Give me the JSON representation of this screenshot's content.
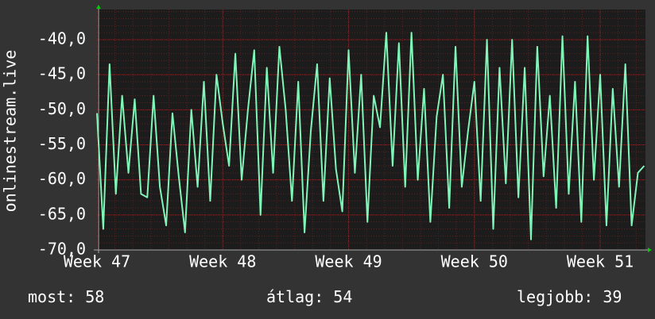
{
  "chart_data": {
    "type": "line",
    "y_label": "onlinestream.live",
    "color": "#80f5b8",
    "grid": true,
    "xlim": [
      47,
      51.36
    ],
    "xticks": [
      {
        "value": 47,
        "label": "Week 47"
      },
      {
        "value": 48,
        "label": "Week 48"
      },
      {
        "value": 49,
        "label": "Week 49"
      },
      {
        "value": 50,
        "label": "Week 50"
      },
      {
        "value": 51,
        "label": "Week 51"
      }
    ],
    "ylim": [
      -70,
      -35.7
    ],
    "yticks": [
      {
        "value": -70,
        "label": "-70,0"
      },
      {
        "value": -65,
        "label": "-65,0"
      },
      {
        "value": -60,
        "label": "-60,0"
      },
      {
        "value": -55,
        "label": "-55,0"
      },
      {
        "value": -50,
        "label": "-50,0"
      },
      {
        "value": -45,
        "label": "-45,0"
      },
      {
        "value": -40,
        "label": "-40,0"
      }
    ],
    "x": [
      47.0,
      47.05,
      47.1,
      47.15,
      47.2,
      47.25,
      47.3,
      47.35,
      47.4,
      47.45,
      47.5,
      47.55,
      47.6,
      47.65,
      47.7,
      47.75,
      47.8,
      47.85,
      47.9,
      47.95,
      48.0,
      48.05,
      48.1,
      48.15,
      48.2,
      48.25,
      48.3,
      48.35,
      48.4,
      48.45,
      48.5,
      48.55,
      48.6,
      48.65,
      48.7,
      48.75,
      48.8,
      48.85,
      48.9,
      48.95,
      49.0,
      49.05,
      49.1,
      49.15,
      49.2,
      49.25,
      49.3,
      49.35,
      49.4,
      49.45,
      49.5,
      49.55,
      49.6,
      49.65,
      49.7,
      49.75,
      49.8,
      49.85,
      49.9,
      49.95,
      50.0,
      50.05,
      50.1,
      50.15,
      50.2,
      50.25,
      50.3,
      50.35,
      50.4,
      50.45,
      50.5,
      50.55,
      50.6,
      50.65,
      50.7,
      50.75,
      50.8,
      50.85,
      50.9,
      50.95,
      51.0,
      51.05,
      51.1,
      51.15,
      51.2,
      51.25,
      51.3,
      51.35
    ],
    "values": [
      -50.5,
      -67,
      -43.5,
      -62,
      -48,
      -59,
      -48.5,
      -62,
      -62.5,
      -48,
      -61,
      -66.5,
      -50.5,
      -59.5,
      -67.5,
      -50,
      -61,
      -46,
      -63,
      -45,
      -52,
      -58,
      -42,
      -60,
      -50,
      -41.5,
      -65,
      -44,
      -59,
      -41,
      -50,
      -63,
      -46,
      -67.5,
      -53,
      -43.5,
      -63,
      -45.5,
      -58.5,
      -64.5,
      -41.5,
      -59,
      -45,
      -66,
      -48,
      -52.5,
      -39,
      -58,
      -40.5,
      -61,
      -39,
      -60,
      -47,
      -66,
      -51,
      -45,
      -64,
      -41,
      -61,
      -53,
      -46,
      -63,
      -40,
      -67,
      -44,
      -60.5,
      -40,
      -62.5,
      -44,
      -68.5,
      -41,
      -59.5,
      -48,
      -64,
      -39.5,
      -62,
      -46,
      -66,
      -39.5,
      -60,
      -45,
      -66.5,
      -47,
      -61,
      -43.5,
      -66.5,
      -59,
      -58
    ],
    "footer": [
      {
        "label": "most:",
        "value": 58
      },
      {
        "label": "átlag:",
        "value": 54
      },
      {
        "label": "legjobb:",
        "value": 39
      }
    ]
  }
}
